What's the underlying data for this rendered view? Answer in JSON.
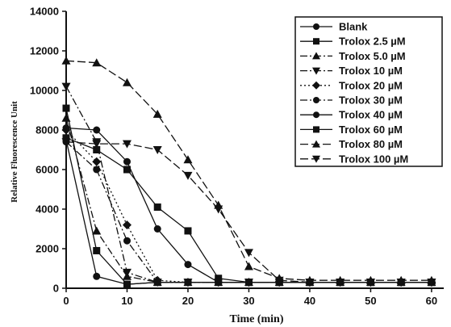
{
  "chart_data": {
    "type": "line",
    "xlabel": "Time (min)",
    "ylabel": "Relative Fluorescence Unit",
    "xlim": [
      0,
      62
    ],
    "ylim": [
      0,
      14000
    ],
    "x_ticks": [
      "0",
      "10",
      "20",
      "30",
      "40",
      "50",
      "60"
    ],
    "y_ticks": [
      "0",
      "2000",
      "4000",
      "6000",
      "8000",
      "10000",
      "12000",
      "14000"
    ],
    "grid": false,
    "legend_position": "top-right",
    "series": [
      {
        "name": "Blank",
        "marker": "circle",
        "dash": "solid",
        "points": [
          [
            0,
            7500
          ],
          [
            5,
            600
          ],
          [
            10,
            200
          ],
          [
            15,
            300
          ],
          [
            20,
            300
          ],
          [
            25,
            300
          ],
          [
            30,
            300
          ],
          [
            35,
            300
          ],
          [
            40,
            300
          ],
          [
            45,
            300
          ],
          [
            50,
            300
          ],
          [
            55,
            300
          ],
          [
            60,
            300
          ]
        ]
      },
      {
        "name": "Trolox 2.5 µM",
        "marker": "square",
        "dash": "solid",
        "points": [
          [
            0,
            9100
          ],
          [
            5,
            1900
          ],
          [
            10,
            200
          ],
          [
            15,
            300
          ],
          [
            20,
            300
          ],
          [
            25,
            300
          ],
          [
            30,
            300
          ],
          [
            35,
            300
          ],
          [
            40,
            300
          ],
          [
            45,
            300
          ],
          [
            50,
            300
          ],
          [
            55,
            300
          ],
          [
            60,
            300
          ]
        ]
      },
      {
        "name": "Trolox 5.0 µM",
        "marker": "triangle-up",
        "dash": "dash-dot",
        "points": [
          [
            0,
            8600
          ],
          [
            5,
            2900
          ],
          [
            10,
            600
          ],
          [
            15,
            300
          ],
          [
            20,
            300
          ],
          [
            25,
            300
          ],
          [
            30,
            300
          ],
          [
            35,
            300
          ],
          [
            40,
            300
          ],
          [
            45,
            300
          ],
          [
            50,
            300
          ],
          [
            55,
            300
          ],
          [
            60,
            300
          ]
        ]
      },
      {
        "name": "Trolox 10 µM",
        "marker": "triangle-down",
        "dash": "dash-dot",
        "points": [
          [
            0,
            10200
          ],
          [
            5,
            7400
          ],
          [
            10,
            800
          ],
          [
            15,
            300
          ],
          [
            20,
            300
          ],
          [
            25,
            300
          ],
          [
            30,
            300
          ],
          [
            35,
            300
          ],
          [
            40,
            300
          ],
          [
            45,
            300
          ],
          [
            50,
            300
          ],
          [
            55,
            300
          ],
          [
            60,
            300
          ]
        ]
      },
      {
        "name": "Trolox 20 µM",
        "marker": "diamond",
        "dash": "dot",
        "points": [
          [
            0,
            8000
          ],
          [
            5,
            6400
          ],
          [
            10,
            3200
          ],
          [
            15,
            400
          ],
          [
            20,
            300
          ],
          [
            25,
            300
          ],
          [
            30,
            300
          ],
          [
            35,
            300
          ],
          [
            40,
            300
          ],
          [
            45,
            300
          ],
          [
            50,
            300
          ],
          [
            55,
            300
          ],
          [
            60,
            300
          ]
        ]
      },
      {
        "name": "Trolox 30 µM",
        "marker": "circle",
        "dash": "dash-dot",
        "points": [
          [
            0,
            7400
          ],
          [
            5,
            6000
          ],
          [
            10,
            2400
          ],
          [
            15,
            300
          ],
          [
            20,
            300
          ],
          [
            25,
            300
          ],
          [
            30,
            300
          ],
          [
            35,
            300
          ],
          [
            40,
            300
          ],
          [
            45,
            300
          ],
          [
            50,
            300
          ],
          [
            55,
            300
          ],
          [
            60,
            300
          ]
        ]
      },
      {
        "name": "Trolox 40 µM",
        "marker": "circle",
        "dash": "solid",
        "points": [
          [
            0,
            8100
          ],
          [
            5,
            8000
          ],
          [
            10,
            6400
          ],
          [
            15,
            3000
          ],
          [
            20,
            1200
          ],
          [
            25,
            300
          ],
          [
            30,
            300
          ],
          [
            35,
            300
          ],
          [
            40,
            300
          ],
          [
            45,
            300
          ],
          [
            50,
            300
          ],
          [
            55,
            300
          ],
          [
            60,
            300
          ]
        ]
      },
      {
        "name": "Trolox 60 µM",
        "marker": "square",
        "dash": "solid",
        "points": [
          [
            0,
            7600
          ],
          [
            5,
            7000
          ],
          [
            10,
            6000
          ],
          [
            15,
            4100
          ],
          [
            20,
            2900
          ],
          [
            25,
            500
          ],
          [
            30,
            300
          ],
          [
            35,
            300
          ],
          [
            40,
            300
          ],
          [
            45,
            300
          ],
          [
            50,
            300
          ],
          [
            55,
            300
          ],
          [
            60,
            300
          ]
        ]
      },
      {
        "name": "Trolox 80 µM",
        "marker": "triangle-up",
        "dash": "long-dash",
        "points": [
          [
            0,
            11500
          ],
          [
            5,
            11400
          ],
          [
            10,
            10400
          ],
          [
            15,
            8800
          ],
          [
            20,
            6500
          ],
          [
            25,
            4200
          ],
          [
            30,
            1100
          ],
          [
            35,
            500
          ],
          [
            40,
            400
          ],
          [
            45,
            400
          ],
          [
            50,
            400
          ],
          [
            55,
            400
          ],
          [
            60,
            400
          ]
        ]
      },
      {
        "name": "Trolox 100 µM",
        "marker": "triangle-down",
        "dash": "long-dash",
        "points": [
          [
            0,
            7400
          ],
          [
            5,
            7300
          ],
          [
            10,
            7300
          ],
          [
            15,
            7000
          ],
          [
            20,
            5700
          ],
          [
            25,
            4000
          ],
          [
            30,
            1800
          ],
          [
            35,
            400
          ],
          [
            40,
            300
          ],
          [
            45,
            300
          ],
          [
            50,
            300
          ],
          [
            55,
            300
          ],
          [
            60,
            300
          ]
        ]
      }
    ]
  }
}
